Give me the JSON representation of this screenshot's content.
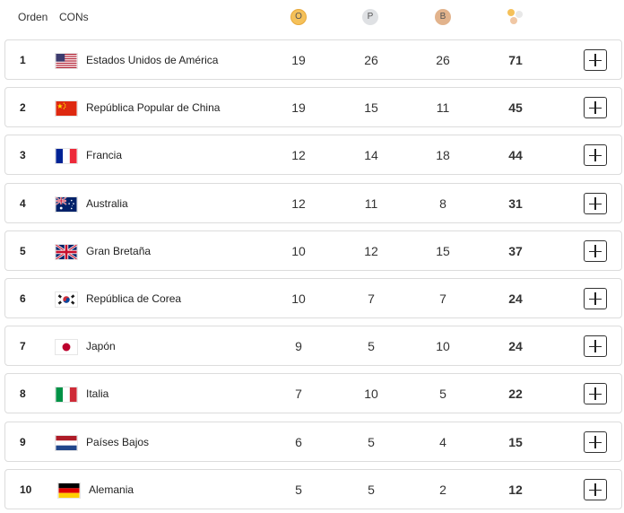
{
  "header": {
    "rank_label": "Orden",
    "noc_label": "CONs",
    "gold_label": "O",
    "silver_label": "P",
    "bronze_label": "B",
    "total_icon": "medals-total-icon"
  },
  "colors": {
    "gold": "#f5c15a",
    "silver": "#dfe1e4",
    "bronze": "#e2b38c",
    "row_border": "#dcdcdc"
  },
  "rows": [
    {
      "rank": "1",
      "country": "Estados Unidos de América",
      "flag": "usa-flag",
      "gold": "19",
      "silver": "26",
      "bronze": "26",
      "total": "71"
    },
    {
      "rank": "2",
      "country": "República Popular de China",
      "flag": "china-flag",
      "gold": "19",
      "silver": "15",
      "bronze": "11",
      "total": "45"
    },
    {
      "rank": "3",
      "country": "Francia",
      "flag": "france-flag",
      "gold": "12",
      "silver": "14",
      "bronze": "18",
      "total": "44"
    },
    {
      "rank": "4",
      "country": "Australia",
      "flag": "australia-flag",
      "gold": "12",
      "silver": "11",
      "bronze": "8",
      "total": "31"
    },
    {
      "rank": "5",
      "country": "Gran Bretaña",
      "flag": "great-britain-flag",
      "gold": "10",
      "silver": "12",
      "bronze": "15",
      "total": "37"
    },
    {
      "rank": "6",
      "country": "República de Corea",
      "flag": "korea-flag",
      "gold": "10",
      "silver": "7",
      "bronze": "7",
      "total": "24"
    },
    {
      "rank": "7",
      "country": "Japón",
      "flag": "japan-flag",
      "gold": "9",
      "silver": "5",
      "bronze": "10",
      "total": "24"
    },
    {
      "rank": "8",
      "country": "Italia",
      "flag": "italy-flag",
      "gold": "7",
      "silver": "10",
      "bronze": "5",
      "total": "22"
    },
    {
      "rank": "9",
      "country": "Países Bajos",
      "flag": "netherlands-flag",
      "gold": "6",
      "silver": "5",
      "bronze": "4",
      "total": "15"
    },
    {
      "rank": "10",
      "country": "Alemania",
      "flag": "germany-flag",
      "gold": "5",
      "silver": "5",
      "bronze": "2",
      "total": "12"
    }
  ]
}
